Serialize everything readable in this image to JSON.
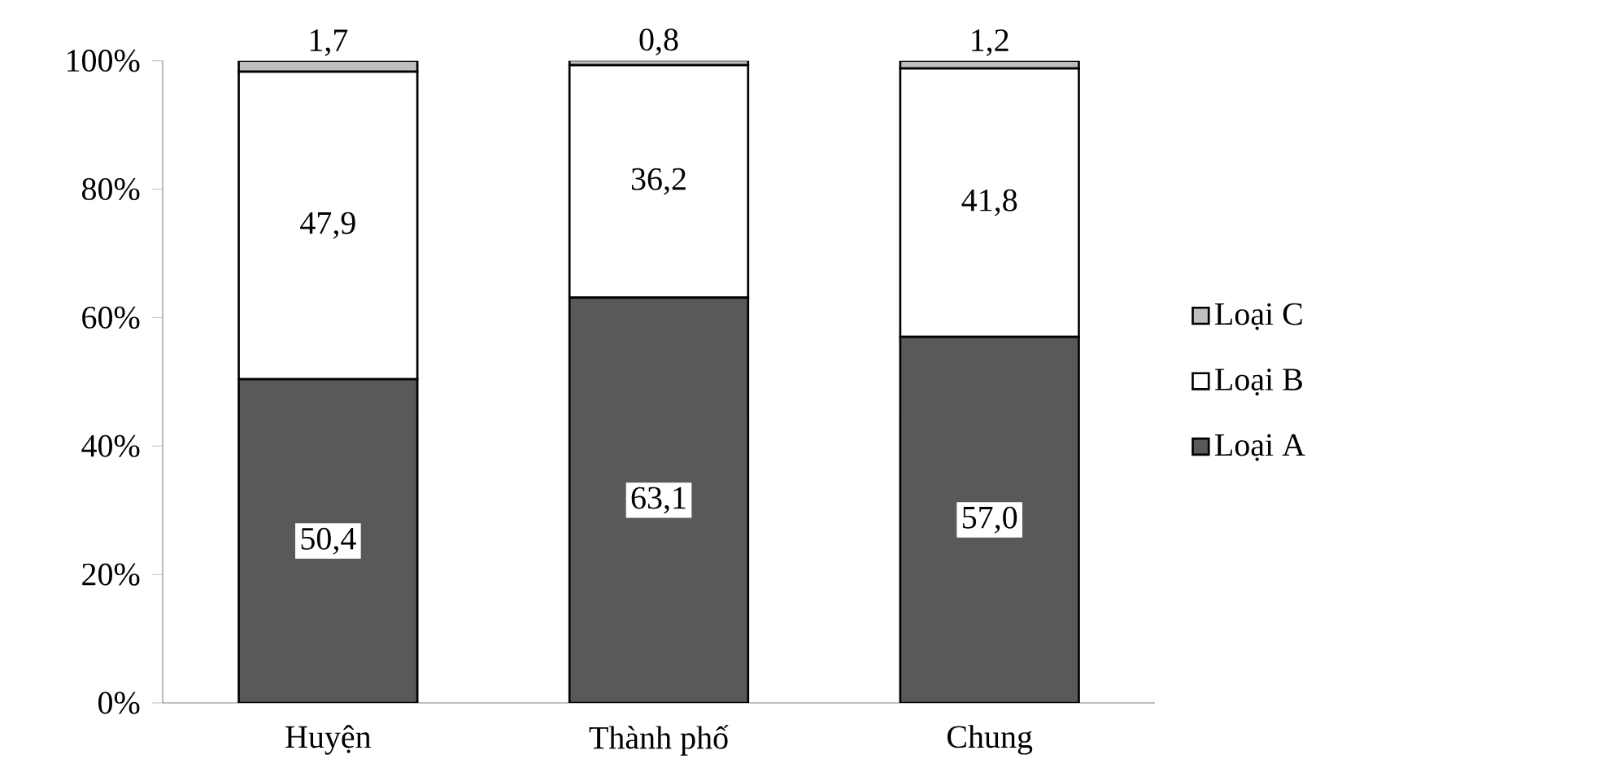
{
  "chart_data": {
    "type": "bar",
    "stacked": true,
    "categories": [
      "Huyện",
      "Thành phố",
      "Chung"
    ],
    "series": [
      {
        "name": "Loại A",
        "color": "#595959",
        "values": [
          50.4,
          63.1,
          57.0
        ],
        "value_labels": [
          "50,4",
          "63,1",
          "57,0"
        ]
      },
      {
        "name": "Loại B",
        "color": "#ffffff",
        "values": [
          47.9,
          36.2,
          41.8
        ],
        "value_labels": [
          "47,9",
          "36,2",
          "41,8"
        ]
      },
      {
        "name": "Loại C",
        "color": "#bfbfbf",
        "values": [
          1.7,
          0.8,
          1.2
        ],
        "value_labels": [
          "1,7",
          "0,8",
          "1,2"
        ]
      }
    ],
    "ylim": [
      0,
      100
    ],
    "yticks": [
      {
        "value": 0,
        "label": "0%"
      },
      {
        "value": 20,
        "label": "20%"
      },
      {
        "value": 40,
        "label": "40%"
      },
      {
        "value": 60,
        "label": "60%"
      },
      {
        "value": 80,
        "label": "80%"
      },
      {
        "value": 100,
        "label": "100%"
      }
    ],
    "legend": "right",
    "grid": false
  }
}
